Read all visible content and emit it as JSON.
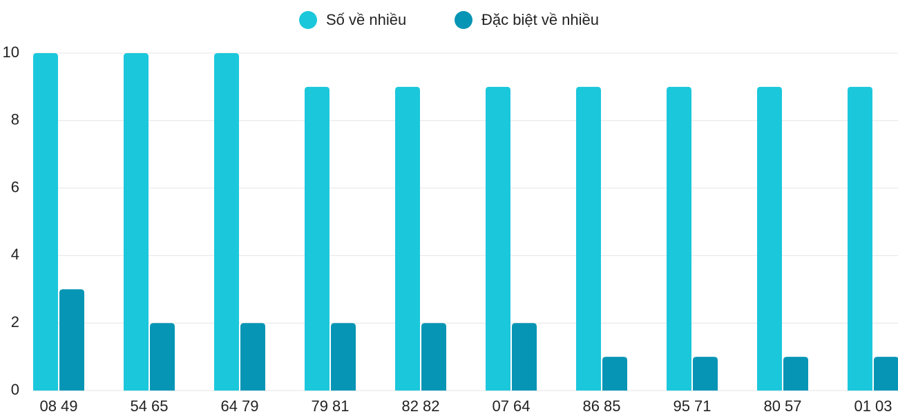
{
  "chart_data": {
    "type": "bar",
    "categories": [
      "08 49",
      "54 65",
      "64 79",
      "79 81",
      "82 82",
      "07 64",
      "86 85",
      "95 71",
      "80 57",
      "01 03"
    ],
    "series": [
      {
        "name": "Số về nhiều",
        "color": "#1bc7db",
        "values": [
          10,
          10,
          10,
          9,
          9,
          9,
          9,
          9,
          9,
          9
        ]
      },
      {
        "name": "Đặc biệt về nhiều",
        "color": "#0795b5",
        "values": [
          3,
          2,
          2,
          2,
          2,
          2,
          1,
          1,
          1,
          1
        ]
      }
    ],
    "ylim": [
      0,
      10
    ],
    "yticks": [
      0,
      2,
      4,
      6,
      8,
      10
    ],
    "grid": true,
    "legend": "top"
  }
}
